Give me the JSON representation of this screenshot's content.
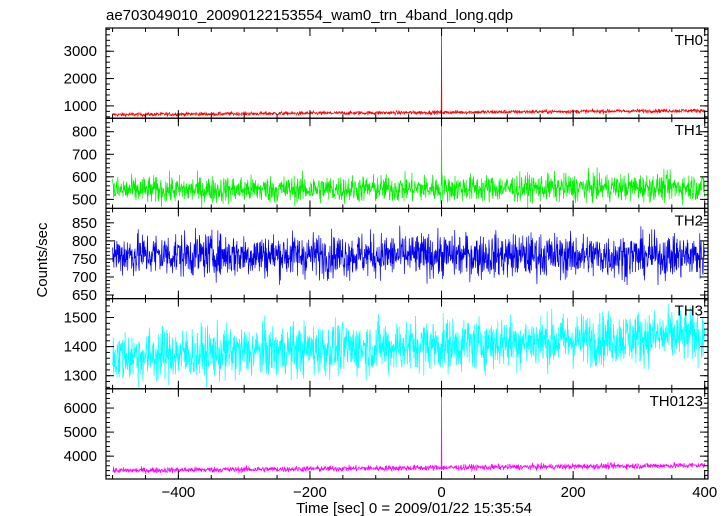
{
  "chart_data": {
    "type": "line",
    "title": "ae703049010_20090122153554_wam0_trn_4band_long.qdp",
    "xlabel": "Time [sec] 0 = 2009/01/22 15:35:54",
    "ylabel": "Counts/sec",
    "xlim": [
      -510,
      405
    ],
    "xticks": [
      -400,
      -200,
      0,
      200,
      400
    ],
    "xtick_labels": [
      "−400",
      "−200",
      "0",
      "200",
      "400"
    ],
    "grid": false,
    "panels": [
      {
        "name": "TH0",
        "color": "#ff0000",
        "ylim": [
          550,
          3850
        ],
        "yticks": [
          1000,
          2000,
          3000
        ],
        "baseline_start": 680,
        "baseline_end": 830,
        "noise": 35,
        "peak_x": 0,
        "peak_y": 3850
      },
      {
        "name": "TH1",
        "color": "#00ee00",
        "ylim": [
          460,
          860
        ],
        "yticks": [
          500,
          600,
          700,
          800
        ],
        "baseline_start": 540,
        "baseline_end": 555,
        "noise": 30,
        "peak_x": 0,
        "peak_y": 860
      },
      {
        "name": "TH2",
        "color": "#0000ee",
        "ylim": [
          640,
          890
        ],
        "yticks": [
          650,
          700,
          750,
          800,
          850
        ],
        "baseline_start": 762,
        "baseline_end": 758,
        "noise": 30,
        "peak_x": null,
        "peak_y": null
      },
      {
        "name": "TH3",
        "color": "#00ffff",
        "ylim": [
          1255,
          1565
        ],
        "yticks": [
          1300,
          1400,
          1500
        ],
        "baseline_start": 1365,
        "baseline_end": 1440,
        "noise": 45,
        "peak_x": null,
        "peak_y": null
      },
      {
        "name": "TH0123",
        "color": "#ff00ff",
        "ylim": [
          3050,
          6800
        ],
        "yticks": [
          4000,
          5000,
          6000
        ],
        "baseline_start": 3400,
        "baseline_end": 3620,
        "noise": 60,
        "peak_x": 0,
        "peak_y": 6800
      }
    ]
  }
}
